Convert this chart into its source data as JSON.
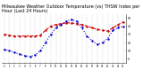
{
  "title": "Milwaukee Weather Outdoor Temperature (vs) THSW Index per Hour (Last 24 Hours)",
  "title_fontsize": 3.5,
  "background_color": "#ffffff",
  "grid_color": "#888888",
  "temp_color": "#cc0000",
  "thsw_color": "#0000cc",
  "ylim": [
    -5,
    55
  ],
  "ytick_values": [
    0,
    10,
    20,
    30,
    40,
    50
  ],
  "ytick_labels": [
    "0",
    "10",
    "20",
    "30",
    "40",
    "50"
  ],
  "hours": [
    0,
    1,
    2,
    3,
    4,
    5,
    6,
    7,
    8,
    9,
    10,
    11,
    12,
    13,
    14,
    15,
    16,
    17,
    18,
    19,
    20,
    21,
    22,
    23
  ],
  "temp": [
    30,
    29,
    28,
    28,
    28,
    28,
    28,
    29,
    35,
    40,
    42,
    43,
    44,
    44,
    43,
    42,
    40,
    38,
    36,
    35,
    34,
    38,
    42,
    45
  ],
  "thsw": [
    12,
    10,
    8,
    6,
    4,
    3,
    5,
    10,
    20,
    30,
    38,
    42,
    46,
    48,
    46,
    38,
    28,
    22,
    18,
    20,
    25,
    35,
    38,
    40
  ]
}
